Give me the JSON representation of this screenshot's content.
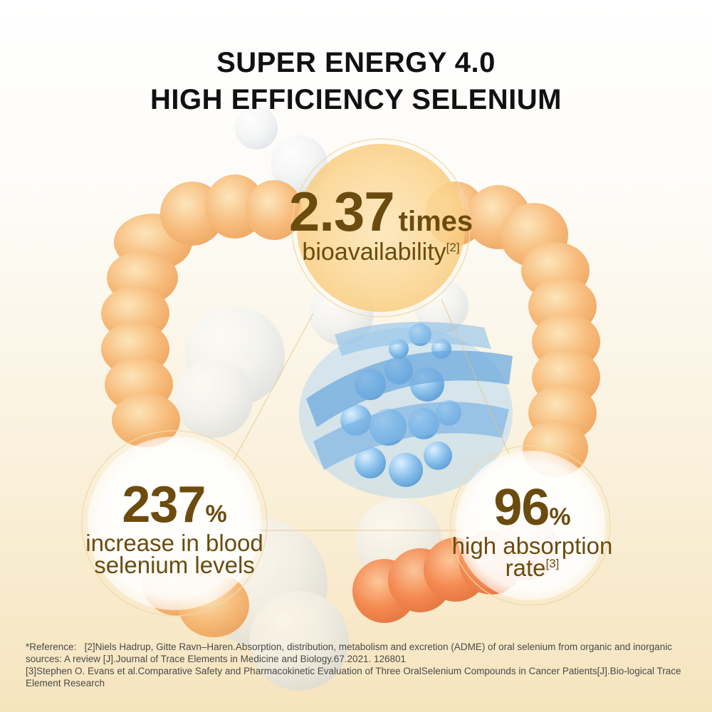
{
  "title": {
    "line1": "SUPER ENERGY 4.0",
    "line2": "HIGH EFFICIENCY SELENIUM"
  },
  "stats": {
    "bioavailability": {
      "value": "2.37",
      "unit": "times",
      "label": "bioavailability",
      "ref": "[2]"
    },
    "blood_selenium": {
      "value": "237",
      "unit": "%",
      "label_line1": "increase in blood",
      "label_line2": "selenium levels"
    },
    "absorption": {
      "value": "96",
      "unit": "%",
      "label_line1": "high absorption",
      "label_line2": "rate",
      "ref": "[3]"
    }
  },
  "references": {
    "prefix": "*Reference:",
    "ref2": "[2]Niels Hadrup, Gitte Ravn–Haren.Absorption, distribution, metabolism and excretion (ADME) of oral selenium from organic and inorganic sources: A review [J].Journal of Trace Elements in Medicine and Biology.67.2021. 126801",
    "ref3": "[3]Stephen O. Evans et al.Comparative Safety and Pharmacokinetic Evaluation of Three OralSelenium Compounds in Cancer Patients[J].Bio-logical Trace Element Research"
  },
  "colors": {
    "accent": "#6b4c0e",
    "title": "#111111",
    "intestine_orange": "#f5a55a",
    "molecule_blue": "#7fb8e8"
  },
  "icons": [
    "intestine-illustration",
    "selenium-molecule-illustration"
  ]
}
